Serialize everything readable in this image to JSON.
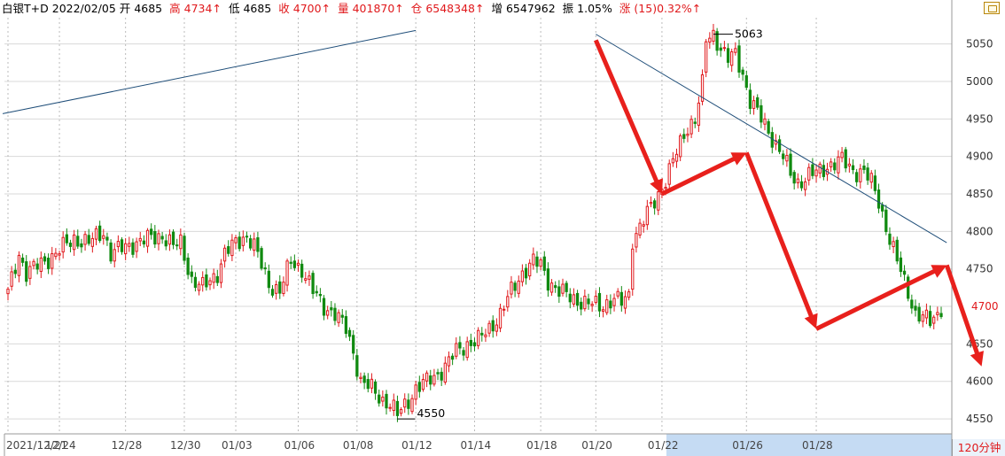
{
  "header": {
    "symbol": "白银T+D",
    "date": "2022/02/05",
    "open_label": "开",
    "open": "4685",
    "high_label": "高",
    "high": "4734↑",
    "low_label": "低",
    "low": "4685",
    "close_label": "收",
    "close": "4700↑",
    "volume_label": "量",
    "volume": "401870↑",
    "oi_label": "仓",
    "oi": "6548348↑",
    "oi_chg_label": "增",
    "oi_chg": "6547962",
    "amp_label": "振",
    "amp": "1.05%",
    "chg_label": "涨",
    "chg": "(15)0.32%↑"
  },
  "period": "120分钟",
  "colors": {
    "up": "#e0191c",
    "down": "#118a11",
    "grid": "#d9d9d9",
    "annotation": "#e8201c",
    "trendline": "#1f4e79",
    "highlight_band": "#c5dbf3"
  },
  "chart_data": {
    "type": "candlestick",
    "interval": "120分钟",
    "ylim": [
      4530,
      5085
    ],
    "y_ticks": [
      4550,
      4600,
      4650,
      4700,
      4750,
      4800,
      4850,
      4900,
      4950,
      5000,
      5050
    ],
    "x_tick_labels": [
      "2021/12/21",
      "12/24",
      "12/28",
      "12/30",
      "01/03",
      "01/06",
      "01/08",
      "01/12",
      "01/14",
      "01/18",
      "01/20",
      "01/22",
      "01/26",
      "01/28"
    ],
    "last_price": 4700,
    "annotations": {
      "high": "5063",
      "low": "4550"
    },
    "anchors": [
      [
        0,
        4718
      ],
      [
        3,
        4770
      ],
      [
        5,
        4745
      ],
      [
        10,
        4760
      ],
      [
        14,
        4775
      ],
      [
        18,
        4790
      ],
      [
        22,
        4785
      ],
      [
        26,
        4800
      ],
      [
        28,
        4770
      ],
      [
        32,
        4780
      ],
      [
        38,
        4790
      ],
      [
        42,
        4795
      ],
      [
        45,
        4780
      ],
      [
        47,
        4785
      ],
      [
        50,
        4735
      ],
      [
        53,
        4725
      ],
      [
        57,
        4745
      ],
      [
        59,
        4770
      ],
      [
        62,
        4785
      ],
      [
        65,
        4795
      ],
      [
        67,
        4780
      ],
      [
        71,
        4730
      ],
      [
        74,
        4720
      ],
      [
        77,
        4760
      ],
      [
        80,
        4750
      ],
      [
        83,
        4720
      ],
      [
        86,
        4700
      ],
      [
        89,
        4690
      ],
      [
        92,
        4670
      ],
      [
        94,
        4640
      ],
      [
        96,
        4600
      ],
      [
        99,
        4590
      ],
      [
        102,
        4575
      ],
      [
        104,
        4570
      ],
      [
        106,
        4555
      ],
      [
        109,
        4575
      ],
      [
        111,
        4590
      ],
      [
        114,
        4600
      ],
      [
        117,
        4610
      ],
      [
        119,
        4620
      ],
      [
        122,
        4640
      ],
      [
        125,
        4650
      ],
      [
        128,
        4655
      ],
      [
        131,
        4670
      ],
      [
        134,
        4690
      ],
      [
        137,
        4720
      ],
      [
        140,
        4745
      ],
      [
        143,
        4760
      ],
      [
        145,
        4755
      ],
      [
        147,
        4735
      ],
      [
        150,
        4720
      ],
      [
        154,
        4710
      ],
      [
        157,
        4705
      ],
      [
        161,
        4700
      ],
      [
        165,
        4710
      ],
      [
        167,
        4705
      ],
      [
        169,
        4715
      ],
      [
        170,
        4790
      ],
      [
        173,
        4815
      ],
      [
        176,
        4840
      ],
      [
        179,
        4870
      ],
      [
        182,
        4905
      ],
      [
        185,
        4940
      ],
      [
        187,
        4950
      ],
      [
        189,
        4995
      ],
      [
        190,
        5055
      ],
      [
        192,
        5063
      ],
      [
        194,
        5045
      ],
      [
        196,
        5030
      ],
      [
        198,
        5035
      ],
      [
        200,
        5010
      ],
      [
        202,
        4975
      ],
      [
        205,
        4950
      ],
      [
        208,
        4925
      ],
      [
        211,
        4900
      ],
      [
        213,
        4875
      ],
      [
        215,
        4865
      ],
      [
        218,
        4875
      ],
      [
        221,
        4880
      ],
      [
        224,
        4890
      ],
      [
        227,
        4895
      ],
      [
        229,
        4885
      ],
      [
        231,
        4880
      ],
      [
        233,
        4880
      ],
      [
        235,
        4865
      ],
      [
        237,
        4840
      ],
      [
        240,
        4790
      ],
      [
        242,
        4760
      ],
      [
        245,
        4720
      ],
      [
        247,
        4690
      ],
      [
        249,
        4685
      ],
      [
        251,
        4680
      ],
      [
        253,
        4690
      ],
      [
        254,
        4700
      ]
    ],
    "trendlines": [
      {
        "from": [
          "start",
          4957
        ],
        "to": [
          "01/12",
          5068
        ]
      },
      {
        "from": [
          "01/20",
          5063
        ],
        "to": [
          "end",
          4785
        ]
      }
    ],
    "arrows": [
      {
        "from": [
          "01/20",
          5055
        ],
        "to": [
          "01/22",
          4850
        ]
      },
      {
        "from": [
          "01/22",
          4850
        ],
        "to": [
          "01/26",
          4905
        ]
      },
      {
        "from": [
          "01/26",
          4905
        ],
        "to": [
          "01/28",
          4670
        ]
      },
      {
        "from": [
          "01/28",
          4670
        ],
        "to": [
          "end",
          4755
        ]
      },
      {
        "from": [
          "end",
          4755
        ],
        "to": [
          "end+",
          4620
        ]
      }
    ]
  }
}
